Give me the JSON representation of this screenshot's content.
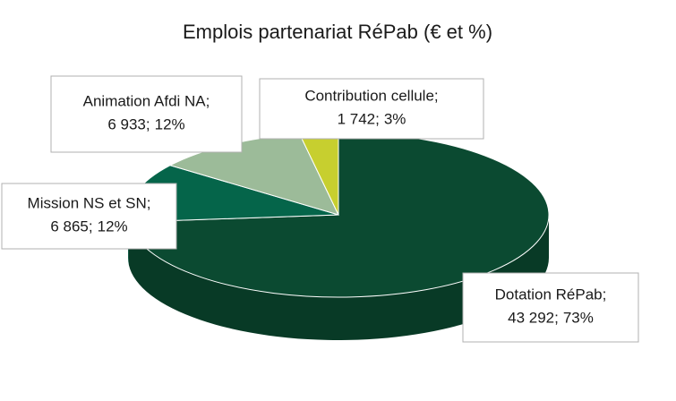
{
  "chart_data": {
    "type": "pie",
    "title": "Emplois partenariat RéPab (€ et %)",
    "categories": [
      "Dotation RéPab",
      "Mission NS et SN",
      "Animation Afdi NA",
      "Contribution cellule"
    ],
    "values": [
      43292,
      6865,
      6933,
      1742
    ],
    "value_labels": [
      "43 292",
      "6 865",
      "6 933",
      "1 742"
    ],
    "percentages": [
      73,
      12,
      12,
      3
    ],
    "percentage_labels": [
      "73%",
      "12%",
      "12%",
      "3%"
    ],
    "label_separator": ";",
    "colors": [
      "#0b4a31",
      "#05654a",
      "#9cbb99",
      "#c7cf2f"
    ],
    "side_colors": [
      "#083a26",
      "#044f3a",
      "#7a9878",
      "#9ea524"
    ]
  }
}
